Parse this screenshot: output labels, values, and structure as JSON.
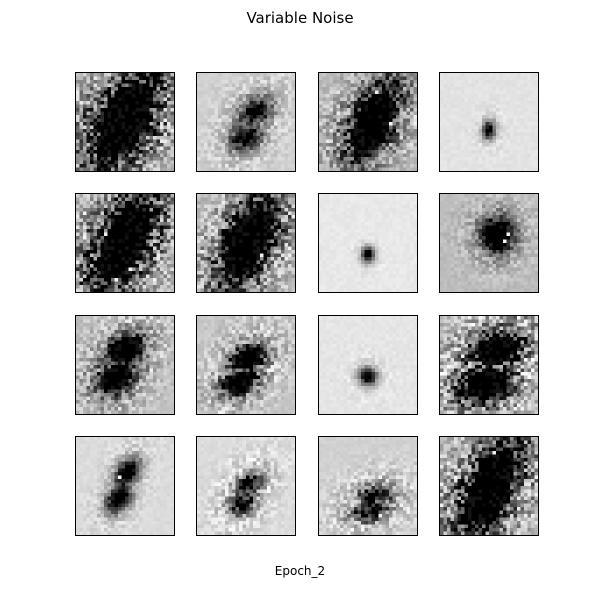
{
  "title": "Variable Noise",
  "xlabel": "Epoch_2",
  "chart_data": {
    "type": "heatmap",
    "title": "Variable Noise",
    "xlabel": "Epoch_2",
    "grid": false,
    "rows": 4,
    "cols": 4,
    "image_resolution": 28,
    "colormap": "gray",
    "panels": [
      {
        "row": 0,
        "col": 0,
        "background": 0.72,
        "blob": [
          0.5,
          0.48
        ],
        "size": [
          0.36,
          0.44
        ],
        "darkness": 1.0,
        "noise": 0.9,
        "shape": "eight-filled"
      },
      {
        "row": 0,
        "col": 1,
        "background": 0.82,
        "blob": [
          0.55,
          0.52
        ],
        "size": [
          0.22,
          0.3
        ],
        "darkness": 0.75,
        "noise": 0.35,
        "shape": "eight-faint"
      },
      {
        "row": 0,
        "col": 2,
        "background": 0.74,
        "blob": [
          0.55,
          0.5
        ],
        "size": [
          0.28,
          0.36
        ],
        "darkness": 0.95,
        "noise": 0.7,
        "shape": "eight-filled"
      },
      {
        "row": 0,
        "col": 3,
        "background": 0.89,
        "blob": [
          0.5,
          0.58
        ],
        "size": [
          0.1,
          0.14
        ],
        "darkness": 0.8,
        "noise": 0.15,
        "shape": "dot"
      },
      {
        "row": 1,
        "col": 0,
        "background": 0.72,
        "blob": [
          0.48,
          0.5
        ],
        "size": [
          0.34,
          0.44
        ],
        "darkness": 1.0,
        "noise": 0.9,
        "shape": "eight-filled"
      },
      {
        "row": 1,
        "col": 1,
        "background": 0.74,
        "blob": [
          0.52,
          0.5
        ],
        "size": [
          0.3,
          0.42
        ],
        "darkness": 1.0,
        "noise": 0.8,
        "shape": "eight-filled"
      },
      {
        "row": 1,
        "col": 2,
        "background": 0.91,
        "blob": [
          0.5,
          0.62
        ],
        "size": [
          0.1,
          0.12
        ],
        "darkness": 0.85,
        "noise": 0.1,
        "shape": "dot"
      },
      {
        "row": 1,
        "col": 3,
        "background": 0.74,
        "blob": [
          0.58,
          0.42
        ],
        "size": [
          0.22,
          0.24
        ],
        "darkness": 0.9,
        "noise": 0.35,
        "shape": "blob"
      },
      {
        "row": 2,
        "col": 0,
        "background": 0.76,
        "blob": [
          0.45,
          0.5
        ],
        "size": [
          0.26,
          0.34
        ],
        "darkness": 0.95,
        "noise": 0.55,
        "shape": "eight-slanted"
      },
      {
        "row": 2,
        "col": 1,
        "background": 0.78,
        "blob": [
          0.48,
          0.55
        ],
        "size": [
          0.24,
          0.28
        ],
        "darkness": 0.95,
        "noise": 0.55,
        "shape": "eight-slanted"
      },
      {
        "row": 2,
        "col": 2,
        "background": 0.9,
        "blob": [
          0.5,
          0.62
        ],
        "size": [
          0.14,
          0.14
        ],
        "darkness": 0.8,
        "noise": 0.15,
        "shape": "dot"
      },
      {
        "row": 2,
        "col": 3,
        "background": 0.74,
        "blob": [
          0.52,
          0.52
        ],
        "size": [
          0.34,
          0.4
        ],
        "darkness": 1.0,
        "noise": 0.8,
        "shape": "eight-slanted"
      },
      {
        "row": 3,
        "col": 0,
        "background": 0.86,
        "blob": [
          0.48,
          0.5
        ],
        "size": [
          0.16,
          0.3
        ],
        "darkness": 0.9,
        "noise": 0.25,
        "shape": "eight-slanted"
      },
      {
        "row": 3,
        "col": 1,
        "background": 0.86,
        "blob": [
          0.5,
          0.58
        ],
        "size": [
          0.18,
          0.24
        ],
        "darkness": 0.7,
        "noise": 0.45,
        "shape": "eight-faint"
      },
      {
        "row": 3,
        "col": 2,
        "background": 0.82,
        "blob": [
          0.55,
          0.68
        ],
        "size": [
          0.24,
          0.2
        ],
        "darkness": 0.75,
        "noise": 0.5,
        "shape": "eight-faint"
      },
      {
        "row": 3,
        "col": 3,
        "background": 0.74,
        "blob": [
          0.52,
          0.5
        ],
        "size": [
          0.32,
          0.44
        ],
        "darkness": 1.0,
        "noise": 0.85,
        "shape": "eight-filled"
      }
    ]
  }
}
